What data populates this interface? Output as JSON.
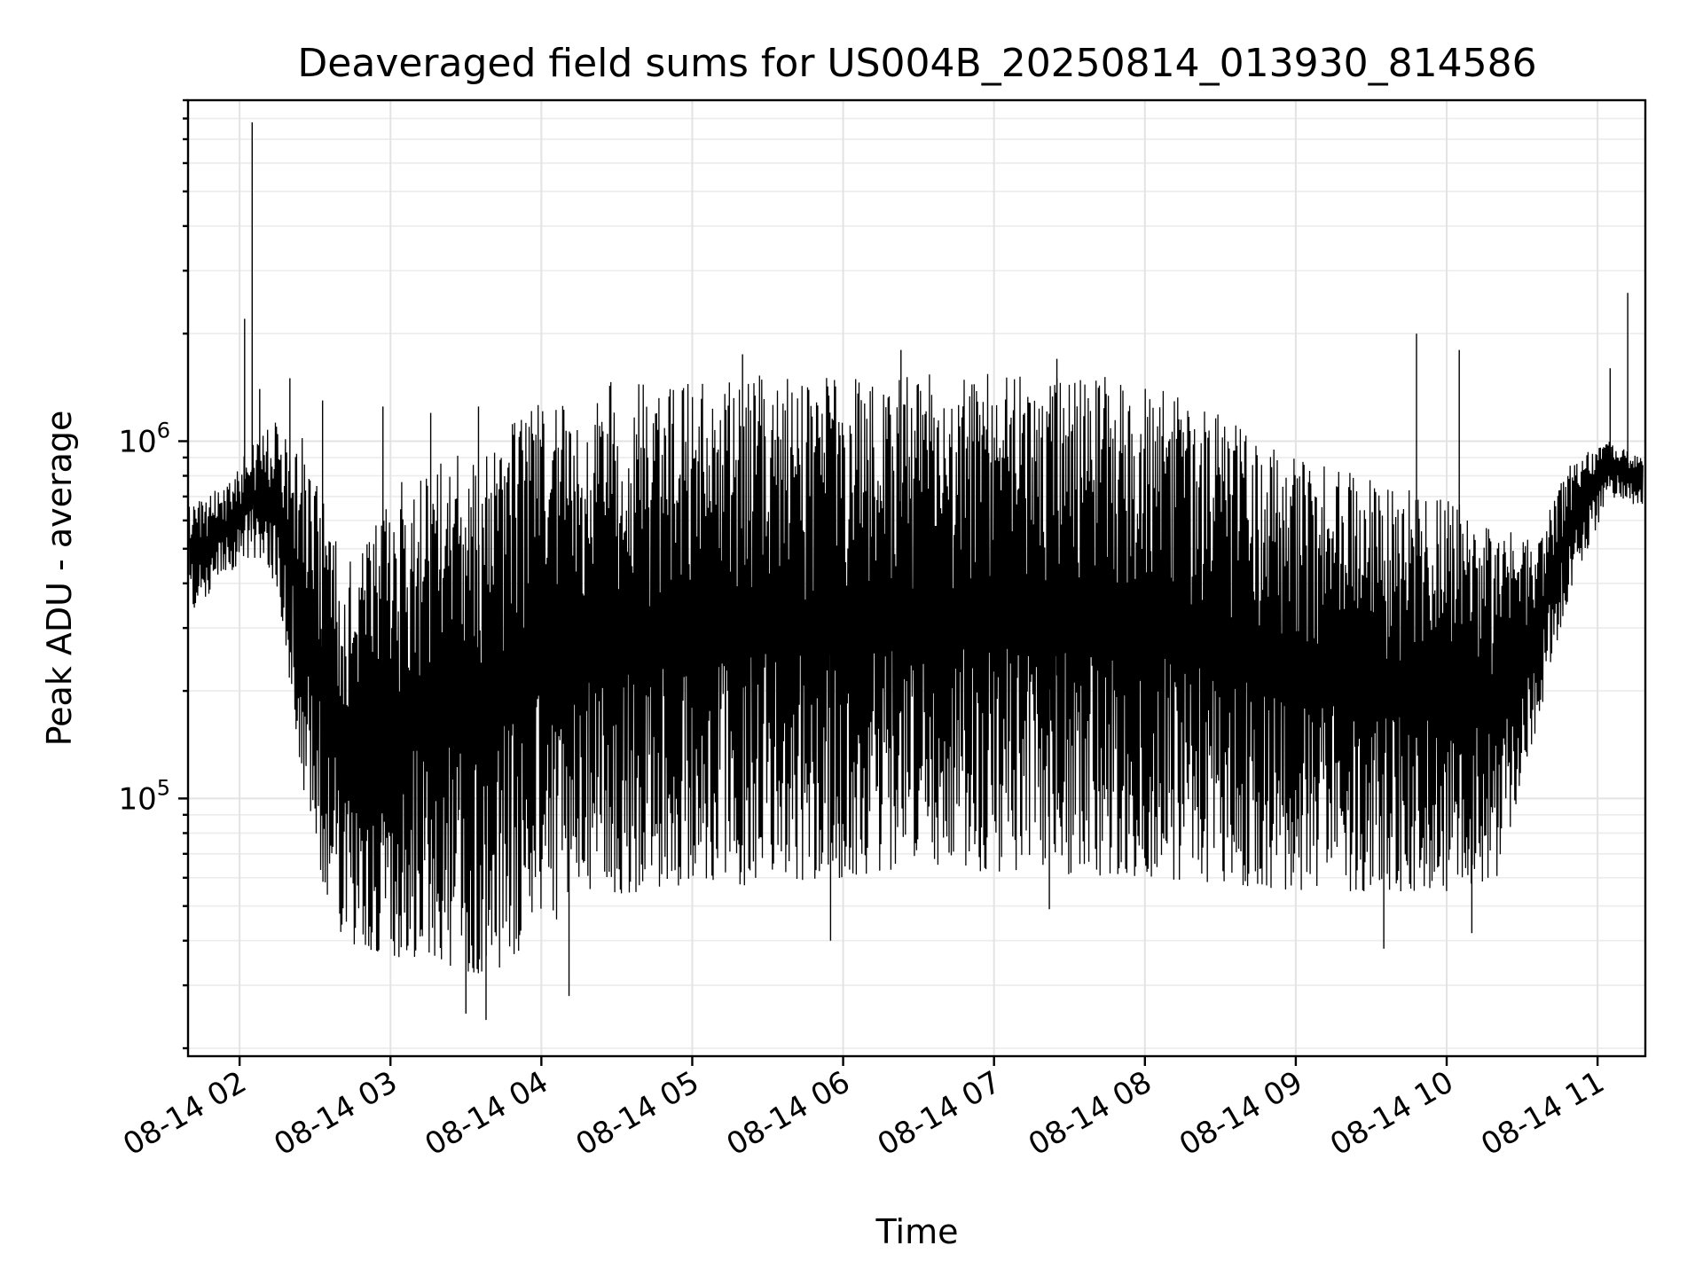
{
  "chart_data": {
    "type": "line",
    "title": "Deaveraged field sums for US004B_20250814_013930_814586",
    "xlabel": "Time",
    "ylabel": "Peak ADU - average",
    "y_scale": "log",
    "ylim": [
      19000,
      9000000
    ],
    "x_range": [
      "2025-08-14 01:39:30",
      "2025-08-14 11:19:00"
    ],
    "grid": true,
    "x_ticks": [
      {
        "value": "2025-08-14 02:00",
        "label": "08-14 02"
      },
      {
        "value": "2025-08-14 03:00",
        "label": "08-14 03"
      },
      {
        "value": "2025-08-14 04:00",
        "label": "08-14 04"
      },
      {
        "value": "2025-08-14 05:00",
        "label": "08-14 05"
      },
      {
        "value": "2025-08-14 06:00",
        "label": "08-14 06"
      },
      {
        "value": "2025-08-14 07:00",
        "label": "08-14 07"
      },
      {
        "value": "2025-08-14 08:00",
        "label": "08-14 08"
      },
      {
        "value": "2025-08-14 09:00",
        "label": "08-14 09"
      },
      {
        "value": "2025-08-14 10:00",
        "label": "08-14 10"
      },
      {
        "value": "2025-08-14 11:00",
        "label": "08-14 11"
      }
    ],
    "y_ticks": [
      {
        "value": 100000,
        "base": "10",
        "exp": "5"
      },
      {
        "value": 1000000,
        "base": "10",
        "exp": "6"
      }
    ],
    "series": [
      {
        "color": "#000000",
        "envelope": [
          {
            "t": "2025-08-14 01:40",
            "low": 330000,
            "high": 660000
          },
          {
            "t": "2025-08-14 01:55",
            "low": 420000,
            "high": 760000
          },
          {
            "t": "2025-08-14 02:05",
            "low": 480000,
            "high": 1000000
          },
          {
            "t": "2025-08-14 02:15",
            "low": 380000,
            "high": 1150000
          },
          {
            "t": "2025-08-14 02:25",
            "low": 110000,
            "high": 1050000
          },
          {
            "t": "2025-08-14 02:35",
            "low": 48000,
            "high": 620000
          },
          {
            "t": "2025-08-14 02:45",
            "low": 37000,
            "high": 450000
          },
          {
            "t": "2025-08-14 02:55",
            "low": 37000,
            "high": 600000
          },
          {
            "t": "2025-08-14 03:10",
            "low": 35000,
            "high": 900000
          },
          {
            "t": "2025-08-14 03:25",
            "low": 33000,
            "high": 900000
          },
          {
            "t": "2025-08-14 03:40",
            "low": 32000,
            "high": 1000000
          },
          {
            "t": "2025-08-14 04:00",
            "low": 42000,
            "high": 1300000
          },
          {
            "t": "2025-08-14 04:20",
            "low": 52000,
            "high": 1450000
          },
          {
            "t": "2025-08-14 04:40",
            "low": 55000,
            "high": 1500000
          },
          {
            "t": "2025-08-14 05:00",
            "low": 55000,
            "high": 1550000
          },
          {
            "t": "2025-08-14 05:30",
            "low": 58000,
            "high": 1550000
          },
          {
            "t": "2025-08-14 06:00",
            "low": 60000,
            "high": 1500000
          },
          {
            "t": "2025-08-14 06:30",
            "low": 65000,
            "high": 1550000
          },
          {
            "t": "2025-08-14 07:00",
            "low": 62000,
            "high": 1550000
          },
          {
            "t": "2025-08-14 07:30",
            "low": 60000,
            "high": 1550000
          },
          {
            "t": "2025-08-14 08:00",
            "low": 60000,
            "high": 1500000
          },
          {
            "t": "2025-08-14 08:30",
            "low": 58000,
            "high": 1200000
          },
          {
            "t": "2025-08-14 09:00",
            "low": 55000,
            "high": 900000
          },
          {
            "t": "2025-08-14 09:30",
            "low": 55000,
            "high": 800000
          },
          {
            "t": "2025-08-14 10:00",
            "low": 55000,
            "high": 700000
          },
          {
            "t": "2025-08-14 10:20",
            "low": 60000,
            "high": 600000
          },
          {
            "t": "2025-08-14 10:35",
            "low": 150000,
            "high": 520000
          },
          {
            "t": "2025-08-14 10:50",
            "low": 400000,
            "high": 900000
          },
          {
            "t": "2025-08-14 11:05",
            "low": 700000,
            "high": 1000000
          },
          {
            "t": "2025-08-14 11:18",
            "low": 650000,
            "high": 900000
          }
        ],
        "spikes": [
          {
            "t": "2025-08-14 02:02",
            "value": 2200000
          },
          {
            "t": "2025-08-14 02:05",
            "value": 7800000
          },
          {
            "t": "2025-08-14 02:08",
            "value": 1400000
          },
          {
            "t": "2025-08-14 02:20",
            "value": 1500000
          },
          {
            "t": "2025-08-14 02:33",
            "value": 1300000
          },
          {
            "t": "2025-08-14 02:57",
            "value": 1250000
          },
          {
            "t": "2025-08-14 03:16",
            "value": 1200000
          },
          {
            "t": "2025-08-14 03:35",
            "value": 1250000
          },
          {
            "t": "2025-08-14 05:20",
            "value": 1750000
          },
          {
            "t": "2025-08-14 06:23",
            "value": 1800000
          },
          {
            "t": "2025-08-14 07:25",
            "value": 1700000
          },
          {
            "t": "2025-08-14 09:48",
            "value": 2000000
          },
          {
            "t": "2025-08-14 10:05",
            "value": 1800000
          },
          {
            "t": "2025-08-14 11:05",
            "value": 1600000
          },
          {
            "t": "2025-08-14 11:12",
            "value": 2600000
          }
        ],
        "dips": [
          {
            "t": "2025-08-14 03:30",
            "value": 25000
          },
          {
            "t": "2025-08-14 03:38",
            "value": 24000
          },
          {
            "t": "2025-08-14 04:11",
            "value": 28000
          },
          {
            "t": "2025-08-14 05:55",
            "value": 40000
          },
          {
            "t": "2025-08-14 07:22",
            "value": 49000
          },
          {
            "t": "2025-08-14 09:35",
            "value": 38000
          },
          {
            "t": "2025-08-14 10:10",
            "value": 42000
          }
        ]
      }
    ]
  }
}
